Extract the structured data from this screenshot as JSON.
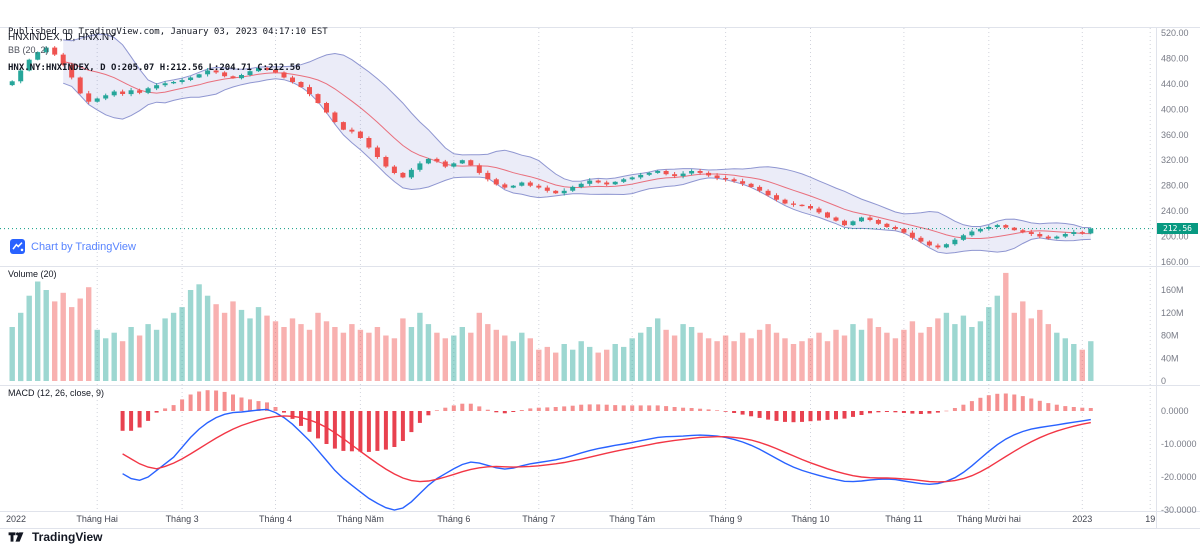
{
  "header": {
    "published_line": "Published on TradingView.com, January 03, 2023 04:17:10 EST",
    "ohlc_line": "HNX.NY:HNXINDEX, D O:205.07 H:212.56 L:204.71 C:212.56"
  },
  "panels": {
    "main": {
      "legend_symbol": "HNXINDEX, D, HNX.NY",
      "legend_indicator": "BB (20, 2)"
    },
    "volume": {
      "legend": "Volume (20)"
    },
    "macd": {
      "legend": "MACD (12, 26, close, 9)"
    }
  },
  "watermark": {
    "label": "Chart by TradingView"
  },
  "footer": {
    "brand": "TradingView"
  },
  "price_scale": {
    "last_price_label": "212.56"
  },
  "colors": {
    "up": "#26a69a",
    "down": "#ef5350",
    "vol_up": "rgba(38,166,154,0.45)",
    "vol_down": "rgba(239,83,80,0.45)",
    "bb_fill": "rgba(101,110,204,0.13)",
    "bb_band": "#7c85c9",
    "bb_basis": "#e9505e",
    "macd_line": "#2962ff",
    "macd_signal": "#f23645",
    "hist_pos": "#f58f8f",
    "hist_neg": "#e8414f",
    "price_line": "#089981",
    "badge_bg": "#089981",
    "axis_text": "#787b86",
    "time_text": "#434651",
    "grid_line": "#9aa0b3",
    "separator": "#e0e3eb"
  },
  "chart_data": [
    {
      "type": "candlestick",
      "title": "HNXINDEX, D, HNX.NY",
      "symbol": "HNX.NY:HNXINDEX",
      "timeframe": "D",
      "ohlc_last": {
        "o": 205.07,
        "h": 212.56,
        "l": 204.71,
        "c": 212.56
      },
      "last_price": 212.56,
      "indicator": {
        "name": "BB",
        "length": 20,
        "mult": 2
      },
      "y_axis": {
        "min": 160,
        "max": 520,
        "step": 40,
        "ticks": [
          {
            "v": 520,
            "label": "520.00"
          },
          {
            "v": 480,
            "label": "480.00"
          },
          {
            "v": 440,
            "label": "440.00"
          },
          {
            "v": 400,
            "label": "400.00"
          },
          {
            "v": 360,
            "label": "360.00"
          },
          {
            "v": 320,
            "label": "320.00"
          },
          {
            "v": 280,
            "label": "280.00"
          },
          {
            "v": 240,
            "label": "240.00"
          },
          {
            "v": 200,
            "label": "200.00"
          },
          {
            "v": 160,
            "label": "160.00"
          }
        ]
      },
      "x_ticks": [
        {
          "i": 0,
          "label": "2022"
        },
        {
          "i": 10,
          "label": "Tháng Hai"
        },
        {
          "i": 20,
          "label": "Tháng 3"
        },
        {
          "i": 31,
          "label": "Tháng 4"
        },
        {
          "i": 41,
          "label": "Tháng Năm"
        },
        {
          "i": 52,
          "label": "Tháng 6"
        },
        {
          "i": 62,
          "label": "Tháng 7"
        },
        {
          "i": 73,
          "label": "Tháng Tám"
        },
        {
          "i": 84,
          "label": "Tháng 9"
        },
        {
          "i": 94,
          "label": "Tháng 10"
        },
        {
          "i": 105,
          "label": "Tháng 11"
        },
        {
          "i": 115,
          "label": "Tháng Mười hai"
        },
        {
          "i": 126,
          "label": "2023"
        },
        {
          "i": 134,
          "label": "19"
        }
      ],
      "first_open": 438,
      "closes": [
        444,
        461,
        478,
        490,
        497,
        486,
        470,
        450,
        425,
        412,
        417,
        422,
        428,
        424,
        430,
        426,
        433,
        438,
        441,
        443,
        446,
        450,
        455,
        461,
        458,
        452,
        449,
        454,
        460,
        465,
        462,
        458,
        450,
        443,
        435,
        424,
        410,
        395,
        380,
        368,
        365,
        355,
        340,
        325,
        310,
        300,
        293,
        305,
        315,
        322,
        318,
        310,
        315,
        320,
        312,
        300,
        290,
        282,
        277,
        280,
        285,
        280,
        277,
        272,
        268,
        272,
        278,
        283,
        288,
        285,
        282,
        286,
        290,
        293,
        297,
        300,
        303,
        298,
        295,
        299,
        303,
        300,
        296,
        292,
        290,
        287,
        283,
        278,
        272,
        265,
        258,
        252,
        250,
        248,
        244,
        238,
        230,
        225,
        218,
        224,
        230,
        226,
        220,
        215,
        212,
        206,
        198,
        192,
        186,
        183,
        188,
        195,
        202,
        208,
        212,
        215,
        218,
        214,
        210,
        207,
        204,
        200,
        197,
        200,
        204,
        207,
        205,
        212.56
      ]
    },
    {
      "type": "bar",
      "title": "Volume (20)",
      "unit": "millions of shares",
      "y_ticks": [
        {
          "v": 160,
          "label": "160M"
        },
        {
          "v": 120,
          "label": "120M"
        },
        {
          "v": 80,
          "label": "80M"
        },
        {
          "v": 40,
          "label": "40M"
        },
        {
          "v": 0,
          "label": "0"
        }
      ],
      "values": [
        95,
        120,
        150,
        175,
        160,
        140,
        155,
        130,
        145,
        165,
        90,
        75,
        85,
        70,
        95,
        80,
        100,
        90,
        110,
        120,
        130,
        160,
        170,
        150,
        135,
        120,
        140,
        125,
        110,
        130,
        115,
        105,
        95,
        110,
        100,
        90,
        120,
        105,
        95,
        85,
        100,
        90,
        85,
        95,
        80,
        75,
        110,
        95,
        120,
        100,
        85,
        75,
        80,
        95,
        85,
        120,
        100,
        90,
        80,
        70,
        85,
        75,
        55,
        60,
        50,
        65,
        55,
        70,
        60,
        50,
        55,
        65,
        60,
        75,
        85,
        95,
        110,
        90,
        80,
        100,
        95,
        85,
        75,
        70,
        80,
        70,
        85,
        75,
        90,
        100,
        85,
        75,
        65,
        70,
        75,
        85,
        70,
        90,
        80,
        100,
        90,
        110,
        95,
        85,
        75,
        90,
        105,
        85,
        95,
        110,
        120,
        100,
        115,
        95,
        105,
        130,
        150,
        190,
        120,
        140,
        110,
        125,
        100,
        85,
        75,
        65,
        55,
        70
      ]
    },
    {
      "type": "line",
      "title": "MACD (12, 26, close, 9)",
      "params": {
        "fast": 12,
        "slow": 26,
        "source": "close",
        "signal": 9
      },
      "y_ticks": [
        {
          "v": 0,
          "label": "0.0000"
        },
        {
          "v": -10,
          "label": "-10.0000"
        },
        {
          "v": -20,
          "label": "-20.0000"
        },
        {
          "v": -30,
          "label": "-30.0000"
        }
      ],
      "series": [
        {
          "name": "macd",
          "values": [
            null,
            null,
            null,
            null,
            null,
            null,
            null,
            null,
            null,
            null,
            null,
            null,
            null,
            -19,
            -20.5,
            -21,
            -20,
            -18,
            -16,
            -14,
            -11,
            -8,
            -5.5,
            -3.5,
            -2,
            -1,
            -0.5,
            -0.3,
            0,
            0.3,
            0.5,
            -0.5,
            -2,
            -4,
            -6.5,
            -9,
            -12,
            -15,
            -18,
            -20.5,
            -22.5,
            -24.5,
            -26.5,
            -28,
            -29.3,
            -30,
            -29.4,
            -27.5,
            -25,
            -22.5,
            -20.5,
            -19,
            -17.5,
            -16.2,
            -15.5,
            -15.8,
            -16.5,
            -17.2,
            -17.6,
            -17.3,
            -16.6,
            -16,
            -15.6,
            -15.2,
            -14.8,
            -14.2,
            -13.5,
            -12.7,
            -12,
            -11.4,
            -10.9,
            -10.4,
            -10,
            -9.5,
            -9,
            -8.5,
            -8,
            -7.8,
            -7.7,
            -7.6,
            -7.4,
            -7.3,
            -7.4,
            -7.6,
            -8,
            -8.6,
            -9.4,
            -10.4,
            -11.6,
            -13,
            -14.4,
            -15.8,
            -17,
            -18,
            -18.8,
            -19.5,
            -20.2,
            -20.8,
            -21.3,
            -21.4,
            -21.2,
            -20.9,
            -20.7,
            -20.6,
            -20.8,
            -21.2,
            -21.6,
            -22,
            -22.2,
            -22,
            -21.3,
            -20.2,
            -18.6,
            -16.6,
            -14.4,
            -12.2,
            -10.2,
            -8.5,
            -7.2,
            -6.2,
            -5.5,
            -5,
            -4.6,
            -4.2,
            -3.8,
            -3.4,
            -3,
            -2.6
          ]
        },
        {
          "name": "signal",
          "values": [
            null,
            null,
            null,
            null,
            null,
            null,
            null,
            null,
            null,
            null,
            null,
            null,
            null,
            -13,
            -14.5,
            -16,
            -17,
            -17.5,
            -16.8,
            -15.8,
            -14.5,
            -13,
            -11.4,
            -9.8,
            -8.2,
            -6.8,
            -5.5,
            -4.4,
            -3.5,
            -2.7,
            -2.1,
            -1.7,
            -1.5,
            -1.6,
            -2,
            -2.7,
            -3.7,
            -5,
            -6.6,
            -8.4,
            -10.3,
            -12.2,
            -14.1,
            -15.9,
            -17.6,
            -19.1,
            -20.3,
            -21.1,
            -21.4,
            -21.2,
            -20.7,
            -20,
            -19.2,
            -18.4,
            -17.7,
            -17.2,
            -16.9,
            -16.8,
            -16.9,
            -17,
            -16.9,
            -16.8,
            -16.6,
            -16.3,
            -16,
            -15.6,
            -15.1,
            -14.6,
            -14,
            -13.4,
            -12.8,
            -12.2,
            -11.7,
            -11.2,
            -10.7,
            -10.2,
            -9.7,
            -9.3,
            -8.9,
            -8.6,
            -8.3,
            -8,
            -7.9,
            -7.8,
            -7.8,
            -8,
            -8.3,
            -8.8,
            -9.5,
            -10.4,
            -11.4,
            -12.5,
            -13.6,
            -14.7,
            -15.7,
            -16.6,
            -17.5,
            -18.3,
            -19,
            -19.6,
            -20,
            -20.2,
            -20.3,
            -20.3,
            -20.4,
            -20.6,
            -20.8,
            -21.1,
            -21.4,
            -21.5,
            -21.4,
            -21.1,
            -20.5,
            -19.6,
            -18.4,
            -17,
            -15.4,
            -13.8,
            -12.2,
            -10.7,
            -9.3,
            -8.1,
            -7,
            -6.1,
            -5.3,
            -4.6,
            -4,
            -3.5
          ]
        }
      ]
    }
  ]
}
